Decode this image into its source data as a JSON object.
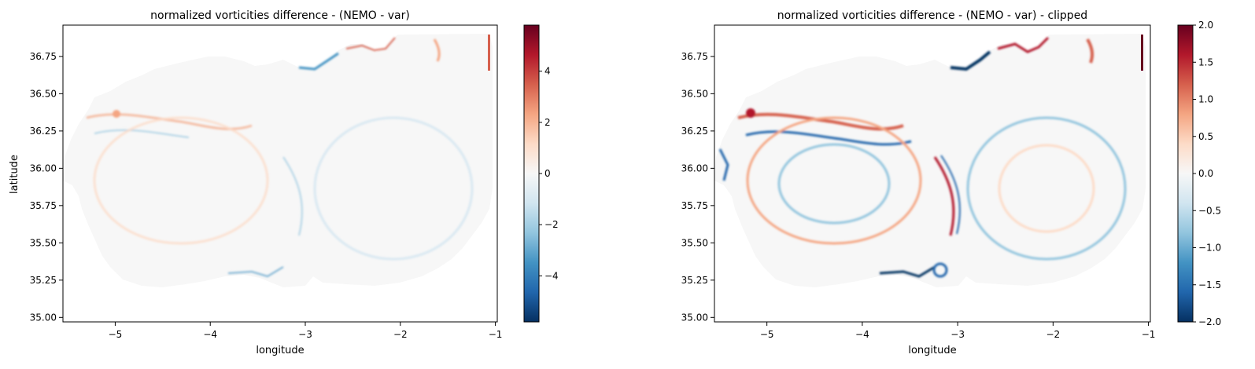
{
  "chart_data": [
    {
      "type": "heatmap",
      "title": "normalized vorticities difference - (NEMO - var)",
      "xlabel": "longitude",
      "ylabel": "latitude",
      "xlim": [
        -5.55,
        -0.98
      ],
      "ylim": [
        34.97,
        36.96
      ],
      "xticks": [
        -5,
        -4,
        -3,
        -2,
        -1
      ],
      "yticks": [
        35.0,
        35.25,
        35.5,
        35.75,
        36.0,
        36.25,
        36.5,
        36.75
      ],
      "xtick_labels": [
        "−5",
        "−4",
        "−3",
        "−2",
        "−1"
      ],
      "ytick_labels": [
        "35.00",
        "35.25",
        "35.50",
        "35.75",
        "36.00",
        "36.25",
        "36.50",
        "36.75"
      ],
      "colormap": "RdBu_r",
      "color_range": [
        -5.8,
        5.8
      ],
      "colorbar_ticks": [
        -4,
        -2,
        0,
        2,
        4
      ],
      "colorbar_labels": [
        "−4",
        "−2",
        "0",
        "2",
        "4"
      ],
      "grid": false
    },
    {
      "type": "heatmap",
      "title": "normalized vorticities difference - (NEMO - var) - clipped",
      "xlabel": "longitude",
      "ylabel": "",
      "xlim": [
        -5.55,
        -0.98
      ],
      "ylim": [
        34.97,
        36.96
      ],
      "xticks": [
        -5,
        -4,
        -3,
        -2,
        -1
      ],
      "yticks": [
        35.0,
        35.25,
        35.5,
        35.75,
        36.0,
        36.25,
        36.5,
        36.75
      ],
      "xtick_labels": [
        "−5",
        "−4",
        "−3",
        "−2",
        "−1"
      ],
      "ytick_labels": [
        "35.00",
        "35.25",
        "35.50",
        "35.75",
        "36.00",
        "36.25",
        "36.50",
        "36.75"
      ],
      "colormap": "RdBu_r",
      "color_range": [
        -2.0,
        2.0
      ],
      "colorbar_ticks": [
        -2.0,
        -1.5,
        -1.0,
        -0.5,
        0.0,
        0.5,
        1.0,
        1.5,
        2.0
      ],
      "colorbar_labels": [
        "−2.0",
        "−1.5",
        "−1.0",
        "−0.5",
        "0.0",
        "0.5",
        "1.0",
        "1.5",
        "2.0"
      ],
      "grid": false
    }
  ],
  "colors": {
    "dark_blue": "#053061",
    "blue": "#2166ac",
    "mid_blue": "#4393c3",
    "light_blue": "#92c5de",
    "pale_blue": "#d1e5f0",
    "white": "#f7f7f7",
    "pale_red": "#fddbc7",
    "light_red": "#f4a582",
    "mid_red": "#d6604d",
    "red": "#b2182b",
    "dark_red": "#67001f"
  }
}
